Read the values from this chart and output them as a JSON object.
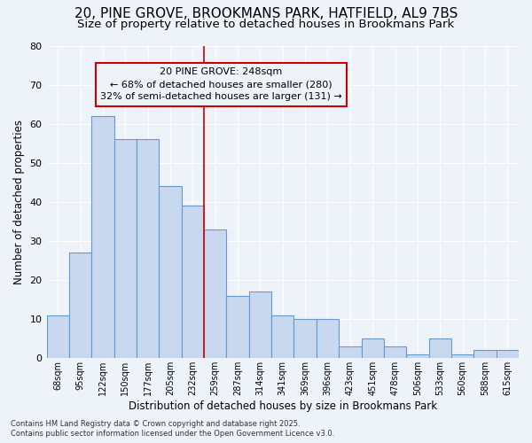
{
  "title_line1": "20, PINE GROVE, BROOKMANS PARK, HATFIELD, AL9 7BS",
  "title_line2": "Size of property relative to detached houses in Brookmans Park",
  "xlabel": "Distribution of detached houses by size in Brookmans Park",
  "ylabel": "Number of detached properties",
  "categories": [
    "68sqm",
    "95sqm",
    "122sqm",
    "150sqm",
    "177sqm",
    "205sqm",
    "232sqm",
    "259sqm",
    "287sqm",
    "314sqm",
    "341sqm",
    "369sqm",
    "396sqm",
    "423sqm",
    "451sqm",
    "478sqm",
    "506sqm",
    "533sqm",
    "560sqm",
    "588sqm",
    "615sqm"
  ],
  "values": [
    11,
    27,
    62,
    56,
    56,
    44,
    39,
    33,
    16,
    17,
    11,
    10,
    10,
    3,
    5,
    3,
    1,
    5,
    1,
    2,
    2
  ],
  "bar_color": "#c8d8ef",
  "bar_edgecolor": "#6699cc",
  "vline_color": "#cc0000",
  "annotation_text": "20 PINE GROVE: 248sqm\n← 68% of detached houses are smaller (280)\n32% of semi-detached houses are larger (131) →",
  "annotation_box_edgecolor": "#cc0000",
  "ylim": [
    0,
    80
  ],
  "yticks": [
    0,
    10,
    20,
    30,
    40,
    50,
    60,
    70,
    80
  ],
  "background_color": "#eef2f9",
  "grid_color": "#ffffff",
  "title_fontsize": 11,
  "subtitle_fontsize": 9.5,
  "footer_line1": "Contains HM Land Registry data © Crown copyright and database right 2025.",
  "footer_line2": "Contains public sector information licensed under the Open Government Licence v3.0."
}
